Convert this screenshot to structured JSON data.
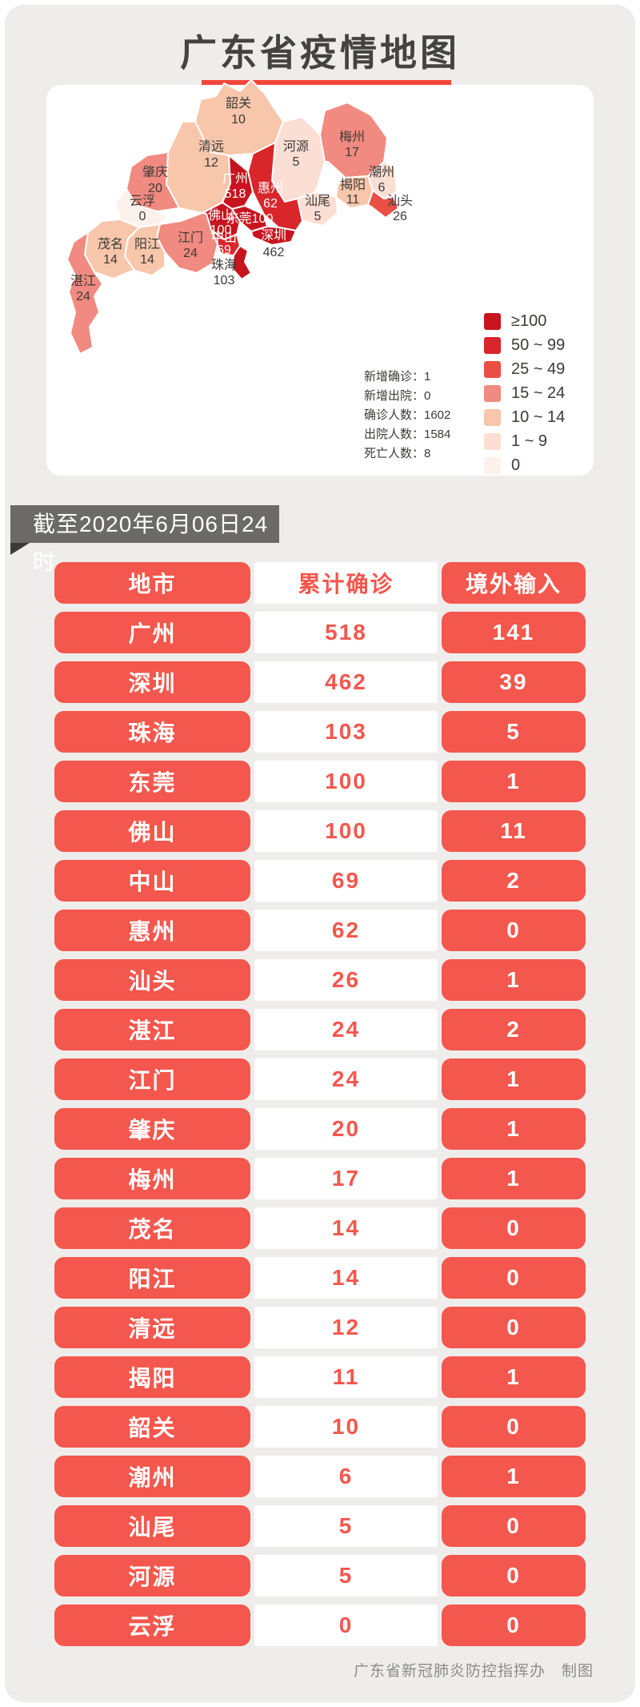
{
  "page": {
    "title": "广东省疫情地图",
    "as_of": "截至2020年6月06日24时",
    "footer": "广东省新冠肺炎防控指挥办　制图"
  },
  "colors": {
    "accent": "#f4574d",
    "underline": "#f4463a",
    "badge_bg": "#6b6a68",
    "badge_fold": "#3c3b39",
    "page_bg": "#efedeb",
    "dark_text": "#454340",
    "map_label": "#3d3a37",
    "buckets": {
      "b100": "#c7141f",
      "b50_99": "#d8262b",
      "b25_49": "#e94f44",
      "b15_24": "#f18a80",
      "b10_14": "#f7c6ab",
      "b1_9": "#fbded4",
      "b0": "#fdf1ec"
    }
  },
  "map": {
    "legend": [
      {
        "label": "≥100",
        "bucket": "b100"
      },
      {
        "label": "50 ~ 99",
        "bucket": "b50_99"
      },
      {
        "label": "25 ~ 49",
        "bucket": "b25_49"
      },
      {
        "label": "15 ~ 24",
        "bucket": "b15_24"
      },
      {
        "label": "10 ~ 14",
        "bucket": "b10_14"
      },
      {
        "label": "1 ~ 9",
        "bucket": "b1_9"
      },
      {
        "label": "0",
        "bucket": "b0"
      }
    ],
    "stats": [
      "新增确诊：1",
      "新增出院：0",
      "确诊人数：1602",
      "出院人数：1584",
      "死亡人数：8"
    ],
    "regions": [
      {
        "id": "shaoguan",
        "name": "韶关",
        "value": "10",
        "bucket": "b10_14"
      },
      {
        "id": "qingyuan",
        "name": "清远",
        "value": "12",
        "bucket": "b10_14"
      },
      {
        "id": "heyuan",
        "name": "河源",
        "value": "5",
        "bucket": "b1_9"
      },
      {
        "id": "meizhou",
        "name": "梅州",
        "value": "17",
        "bucket": "b15_24"
      },
      {
        "id": "chaozhou",
        "name": "潮州",
        "value": "6",
        "bucket": "b1_9"
      },
      {
        "id": "jieyang",
        "name": "揭阳",
        "value": "11",
        "bucket": "b10_14"
      },
      {
        "id": "shantou",
        "name": "汕头",
        "value": "26",
        "bucket": "b25_49"
      },
      {
        "id": "shanwei",
        "name": "汕尾",
        "value": "5",
        "bucket": "b1_9"
      },
      {
        "id": "huizhou",
        "name": "惠州",
        "value": "62",
        "bucket": "b50_99"
      },
      {
        "id": "guangzhou",
        "name": "广州",
        "value": "518",
        "bucket": "b100"
      },
      {
        "id": "dongguan",
        "name": "东莞",
        "value": "100",
        "bucket": "b100"
      },
      {
        "id": "shenzhen",
        "name": "深圳",
        "value": "462",
        "bucket": "b100"
      },
      {
        "id": "foshan",
        "name": "佛山",
        "value": "100",
        "bucket": "b100"
      },
      {
        "id": "zhongshan",
        "name": "中山",
        "value": "69",
        "bucket": "b50_99"
      },
      {
        "id": "zhuhai",
        "name": "珠海",
        "value": "103",
        "bucket": "b100"
      },
      {
        "id": "jiangmen",
        "name": "江门",
        "value": "24",
        "bucket": "b15_24"
      },
      {
        "id": "zhaoqing",
        "name": "肇庆",
        "value": "20",
        "bucket": "b15_24"
      },
      {
        "id": "yunfu",
        "name": "云浮",
        "value": "0",
        "bucket": "b0"
      },
      {
        "id": "yangjiang",
        "name": "阳江",
        "value": "14",
        "bucket": "b10_14"
      },
      {
        "id": "maoming",
        "name": "茂名",
        "value": "14",
        "bucket": "b10_14"
      },
      {
        "id": "zhanjiang",
        "name": "湛江",
        "value": "24",
        "bucket": "b15_24"
      }
    ]
  },
  "table": {
    "headers": [
      "地市",
      "累计确诊",
      "境外输入"
    ],
    "rows": [
      [
        "广州",
        "518",
        "141"
      ],
      [
        "深圳",
        "462",
        "39"
      ],
      [
        "珠海",
        "103",
        "5"
      ],
      [
        "东莞",
        "100",
        "1"
      ],
      [
        "佛山",
        "100",
        "11"
      ],
      [
        "中山",
        "69",
        "2"
      ],
      [
        "惠州",
        "62",
        "0"
      ],
      [
        "汕头",
        "26",
        "1"
      ],
      [
        "湛江",
        "24",
        "2"
      ],
      [
        "江门",
        "24",
        "1"
      ],
      [
        "肇庆",
        "20",
        "1"
      ],
      [
        "梅州",
        "17",
        "1"
      ],
      [
        "茂名",
        "14",
        "0"
      ],
      [
        "阳江",
        "14",
        "0"
      ],
      [
        "清远",
        "12",
        "0"
      ],
      [
        "揭阳",
        "11",
        "1"
      ],
      [
        "韶关",
        "10",
        "0"
      ],
      [
        "潮州",
        "6",
        "1"
      ],
      [
        "汕尾",
        "5",
        "0"
      ],
      [
        "河源",
        "5",
        "0"
      ],
      [
        "云浮",
        "0",
        "0"
      ]
    ]
  },
  "chart_data": {
    "type": "table",
    "title": "广东省疫情地图",
    "as_of": "截至2020年6月06日24时",
    "columns": [
      "地市",
      "累计确诊",
      "境外输入"
    ],
    "rows": [
      [
        "广州",
        518,
        141
      ],
      [
        "深圳",
        462,
        39
      ],
      [
        "珠海",
        103,
        5
      ],
      [
        "东莞",
        100,
        1
      ],
      [
        "佛山",
        100,
        11
      ],
      [
        "中山",
        69,
        2
      ],
      [
        "惠州",
        62,
        0
      ],
      [
        "汕头",
        26,
        1
      ],
      [
        "湛江",
        24,
        2
      ],
      [
        "江门",
        24,
        1
      ],
      [
        "肇庆",
        20,
        1
      ],
      [
        "梅州",
        17,
        1
      ],
      [
        "茂名",
        14,
        0
      ],
      [
        "阳江",
        14,
        0
      ],
      [
        "清远",
        12,
        0
      ],
      [
        "揭阳",
        11,
        1
      ],
      [
        "韶关",
        10,
        0
      ],
      [
        "潮州",
        6,
        1
      ],
      [
        "汕尾",
        5,
        0
      ],
      [
        "河源",
        5,
        0
      ],
      [
        "云浮",
        0,
        0
      ]
    ],
    "map_type": "choropleth",
    "legend_buckets": [
      "≥100",
      "50 ~ 99",
      "25 ~ 49",
      "15 ~ 24",
      "10 ~ 14",
      "1 ~ 9",
      "0"
    ],
    "summary": {
      "新增确诊": 1,
      "新增出院": 0,
      "确诊人数": 1602,
      "出院人数": 1584,
      "死亡人数": 8
    }
  }
}
